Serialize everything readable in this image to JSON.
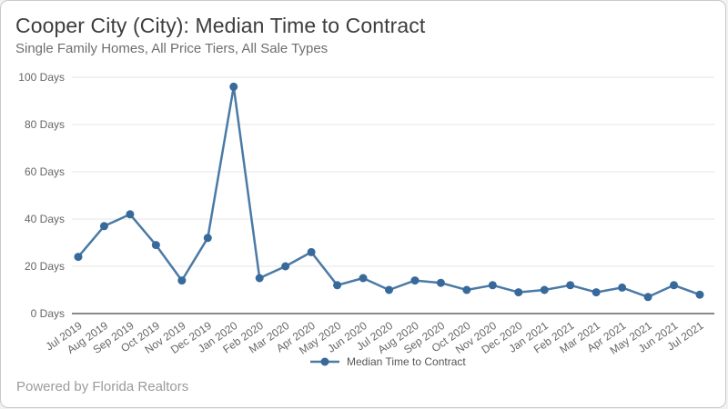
{
  "header": {
    "title": "Cooper City (City): Median Time to Contract",
    "subtitle": "Single Family Homes, All Price Tiers, All Sale Types"
  },
  "footer": {
    "powered_by": "Powered by Florida Realtors"
  },
  "chart_data": {
    "type": "line",
    "title": "Cooper City (City): Median Time to Contract",
    "subtitle": "Single Family Homes, All Price Tiers, All Sale Types",
    "categories": [
      "Jul 2019",
      "Aug 2019",
      "Sep 2019",
      "Oct 2019",
      "Nov 2019",
      "Dec 2019",
      "Jan 2020",
      "Feb 2020",
      "Mar 2020",
      "Apr 2020",
      "May 2020",
      "Jun 2020",
      "Jul 2020",
      "Aug 2020",
      "Sep 2020",
      "Oct 2020",
      "Nov 2020",
      "Dec 2020",
      "Jan 2021",
      "Feb 2021",
      "Mar 2021",
      "Apr 2021",
      "May 2021",
      "Jun 2021",
      "Jul 2021"
    ],
    "series": [
      {
        "name": "Median Time to Contract",
        "values": [
          24,
          37,
          42,
          29,
          14,
          32,
          96,
          15,
          20,
          26,
          12,
          15,
          10,
          14,
          13,
          10,
          12,
          9,
          10,
          12,
          9,
          11,
          7,
          12,
          8
        ]
      }
    ],
    "xlabel": "",
    "ylabel": "",
    "y_unit": "Days",
    "yticks": [
      0,
      20,
      40,
      60,
      80,
      100
    ],
    "ylim": [
      0,
      100
    ],
    "grid": true,
    "legend_position": "bottom",
    "x_label_rotation": -35,
    "colors": {
      "line": "#4a7aa6",
      "marker": "#38699b",
      "grid": "#e6e6e6",
      "axis": "#8a8a8a",
      "tick_label": "#666666",
      "legend_text": "#555555"
    }
  }
}
